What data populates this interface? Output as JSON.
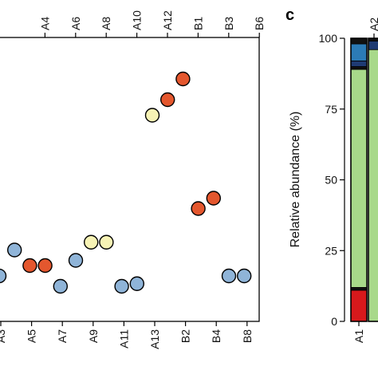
{
  "colors": {
    "red": "#E4572E",
    "blue": "#8FB4D8",
    "yellow": "#F7F3B5",
    "green": "#A8D98A",
    "stack_red": "#D7191C",
    "stack_navy": "#1F3B73",
    "stack_blue": "#2C7BB6",
    "stack_black": "#111111"
  },
  "chart_data": [
    {
      "type": "scatter",
      "title": "",
      "xlabel": "",
      "ylabel": "",
      "top_tick_labels": [
        "A4",
        "A6",
        "A8",
        "A10",
        "A12",
        "B1",
        "B3",
        "B6"
      ],
      "bottom_tick_labels": [
        "A3",
        "A5",
        "A7",
        "A9",
        "A11",
        "A13",
        "B2",
        "B4",
        "B8"
      ],
      "points": [
        {
          "sample": "A2",
          "value": 12,
          "color": "blue"
        },
        {
          "sample": "A3",
          "value": 22,
          "color": "blue"
        },
        {
          "sample": "A4",
          "value": 16,
          "color": "red"
        },
        {
          "sample": "A5",
          "value": 16,
          "color": "red"
        },
        {
          "sample": "A6",
          "value": 8,
          "color": "blue"
        },
        {
          "sample": "A7",
          "value": 18,
          "color": "blue"
        },
        {
          "sample": "A8",
          "value": 25,
          "color": "yellow"
        },
        {
          "sample": "A9",
          "value": 25,
          "color": "yellow"
        },
        {
          "sample": "A10",
          "value": 8,
          "color": "blue"
        },
        {
          "sample": "A11",
          "value": 9,
          "color": "blue"
        },
        {
          "sample": "A12",
          "value": 74,
          "color": "yellow"
        },
        {
          "sample": "A13",
          "value": 80,
          "color": "red"
        },
        {
          "sample": "B1",
          "value": 88,
          "color": "red"
        },
        {
          "sample": "B2",
          "value": 38,
          "color": "red"
        },
        {
          "sample": "B3",
          "value": 42,
          "color": "red"
        },
        {
          "sample": "B4",
          "value": 12,
          "color": "blue"
        },
        {
          "sample": "B6",
          "value": 12,
          "color": "blue"
        }
      ]
    },
    {
      "type": "bar",
      "panel_letter": "c",
      "ylabel": "Relative abundance (%)",
      "ylim": [
        0,
        100
      ],
      "yticks": [
        0,
        25,
        50,
        75,
        100
      ],
      "bottom_tick_labels": [
        "A1"
      ],
      "top_tick_labels": [
        "A2"
      ],
      "bars": [
        {
          "name": "A1",
          "segments": [
            {
              "color": "stack_red",
              "value": 11
            },
            {
              "color": "stack_black",
              "value": 1
            },
            {
              "color": "green",
              "value": 77
            },
            {
              "color": "stack_black",
              "value": 1
            },
            {
              "color": "stack_navy",
              "value": 2
            },
            {
              "color": "stack_blue",
              "value": 6
            },
            {
              "color": "stack_black",
              "value": 2
            }
          ]
        },
        {
          "name": "A2",
          "segments": [
            {
              "color": "green",
              "value": 96
            },
            {
              "color": "stack_navy",
              "value": 3
            },
            {
              "color": "stack_black",
              "value": 1
            }
          ]
        }
      ]
    }
  ]
}
